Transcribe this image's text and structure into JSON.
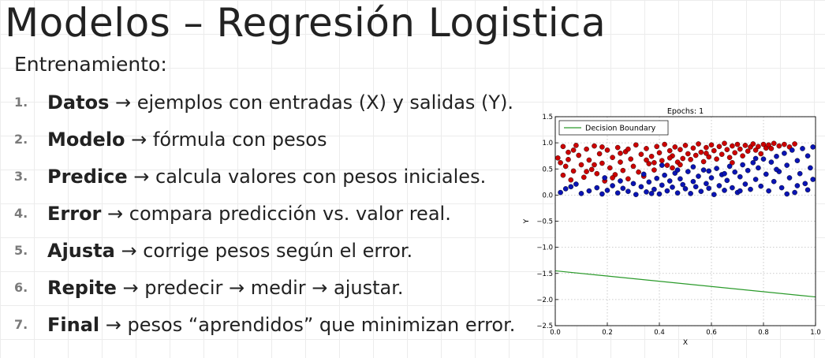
{
  "slide": {
    "title": "Modelos – Regresión Logistica",
    "subtitle": "Entrenamiento:",
    "steps": [
      {
        "num": "1.",
        "keyword": "Datos",
        "text": " → ejemplos con entradas (X) y salidas (Y)."
      },
      {
        "num": "2.",
        "keyword": "Modelo",
        "text": " → fórmula con pesos"
      },
      {
        "num": "3.",
        "keyword": "Predice",
        "text": " → calcula valores con pesos iniciales."
      },
      {
        "num": "4.",
        "keyword": "Error",
        "text": " → compara predicción vs. valor real."
      },
      {
        "num": "5.",
        "keyword": "Ajusta",
        "text": " → corrige pesos según el error."
      },
      {
        "num": "6.",
        "keyword": "Repite",
        "text": " → predecir → medir → ajustar."
      },
      {
        "num": "7.",
        "keyword": "Final",
        "text": " → pesos “aprendidos” que minimizan error."
      }
    ]
  },
  "chart_data": {
    "type": "scatter",
    "title": "Epochs: 1",
    "xlabel": "X",
    "ylabel": "Y",
    "xlim": [
      0.0,
      1.0
    ],
    "ylim": [
      -2.5,
      1.5
    ],
    "xticks": [
      "0.0",
      "0.2",
      "0.4",
      "0.6",
      "0.8",
      "1.0"
    ],
    "yticks": [
      "1.5",
      "1.0",
      "0.5",
      "0.0",
      "−0.5",
      "−1.0",
      "−1.5",
      "−2.0",
      "−2.5"
    ],
    "grid": true,
    "legend_position": "top-left",
    "legend": [
      "Decision Boundary"
    ],
    "colors": {
      "class_a": "#cc0000",
      "class_b": "#0a14b4",
      "boundary": "#2a9a2a"
    },
    "boundary_line": {
      "x": [
        0.0,
        1.0
      ],
      "y": [
        -1.45,
        -1.95
      ]
    },
    "series": [
      {
        "class": "red",
        "points": [
          [
            0.01,
            0.71
          ],
          [
            0.02,
            0.62
          ],
          [
            0.03,
            0.93
          ],
          [
            0.03,
            0.38
          ],
          [
            0.04,
            0.55
          ],
          [
            0.05,
            0.82
          ],
          [
            0.06,
            0.29
          ],
          [
            0.07,
            0.46
          ],
          [
            0.08,
            0.95
          ],
          [
            0.09,
            0.76
          ],
          [
            0.1,
            0.58
          ],
          [
            0.11,
            0.34
          ],
          [
            0.12,
            0.88
          ],
          [
            0.13,
            0.67
          ],
          [
            0.14,
            0.49
          ],
          [
            0.15,
            0.94
          ],
          [
            0.16,
            0.41
          ],
          [
            0.17,
            0.79
          ],
          [
            0.18,
            0.61
          ],
          [
            0.19,
            0.27
          ],
          [
            0.2,
            0.86
          ],
          [
            0.21,
            0.52
          ],
          [
            0.22,
            0.72
          ],
          [
            0.23,
            0.39
          ],
          [
            0.24,
            0.91
          ],
          [
            0.25,
            0.63
          ],
          [
            0.26,
            0.47
          ],
          [
            0.27,
            0.83
          ],
          [
            0.28,
            0.31
          ],
          [
            0.29,
            0.69
          ],
          [
            0.3,
            0.55
          ],
          [
            0.31,
            0.96
          ],
          [
            0.32,
            0.44
          ],
          [
            0.33,
            0.78
          ],
          [
            0.34,
            0.36
          ],
          [
            0.35,
            0.89
          ],
          [
            0.36,
            0.6
          ],
          [
            0.37,
            0.74
          ],
          [
            0.38,
            0.48
          ],
          [
            0.39,
            0.93
          ],
          [
            0.4,
            0.81
          ],
          [
            0.41,
            0.66
          ],
          [
            0.42,
            0.97
          ],
          [
            0.43,
            0.57
          ],
          [
            0.44,
            0.85
          ],
          [
            0.45,
            0.75
          ],
          [
            0.46,
            0.92
          ],
          [
            0.47,
            0.63
          ],
          [
            0.48,
            0.87
          ],
          [
            0.49,
            0.7
          ],
          [
            0.5,
            0.95
          ],
          [
            0.51,
            0.79
          ],
          [
            0.52,
            0.68
          ],
          [
            0.53,
            0.9
          ],
          [
            0.54,
            0.76
          ],
          [
            0.55,
            0.98
          ],
          [
            0.56,
            0.82
          ],
          [
            0.57,
            0.64
          ],
          [
            0.58,
            0.91
          ],
          [
            0.59,
            0.73
          ],
          [
            0.6,
            0.96
          ],
          [
            0.61,
            0.85
          ],
          [
            0.62,
            0.69
          ],
          [
            0.63,
            0.93
          ],
          [
            0.64,
            0.78
          ],
          [
            0.65,
            0.99
          ],
          [
            0.66,
            0.87
          ],
          [
            0.67,
            0.72
          ],
          [
            0.68,
            0.94
          ],
          [
            0.69,
            0.81
          ],
          [
            0.7,
            0.97
          ],
          [
            0.71,
            0.88
          ],
          [
            0.72,
            0.75
          ],
          [
            0.73,
            0.95
          ],
          [
            0.74,
            0.84
          ],
          [
            0.75,
            0.92
          ],
          [
            0.76,
            0.98
          ],
          [
            0.77,
            0.86
          ],
          [
            0.78,
            0.93
          ],
          [
            0.79,
            0.79
          ],
          [
            0.8,
            0.97
          ],
          [
            0.81,
            0.9
          ],
          [
            0.82,
            0.96
          ],
          [
            0.83,
            0.89
          ],
          [
            0.84,
            0.99
          ],
          [
            0.86,
            0.94
          ],
          [
            0.88,
            0.97
          ],
          [
            0.9,
            0.92
          ],
          [
            0.92,
            0.98
          ],
          [
            0.05,
            0.68
          ],
          [
            0.15,
            0.58
          ],
          [
            0.25,
            0.8
          ],
          [
            0.35,
            0.67
          ],
          [
            0.45,
            0.52
          ],
          [
            0.12,
            0.45
          ],
          [
            0.22,
            0.33
          ],
          [
            0.07,
            0.86
          ],
          [
            0.18,
            0.92
          ],
          [
            0.28,
            0.88
          ],
          [
            0.38,
            0.62
          ],
          [
            0.48,
            0.58
          ],
          [
            0.58,
            0.8
          ],
          [
            0.68,
            0.62
          ],
          [
            0.44,
            0.71
          ]
        ]
      },
      {
        "class": "blue",
        "points": [
          [
            0.02,
            0.05
          ],
          [
            0.04,
            0.12
          ],
          [
            0.08,
            0.21
          ],
          [
            0.1,
            0.03
          ],
          [
            0.16,
            0.14
          ],
          [
            0.18,
            0.02
          ],
          [
            0.2,
            0.09
          ],
          [
            0.22,
            0.18
          ],
          [
            0.24,
            0.04
          ],
          [
            0.26,
            0.13
          ],
          [
            0.28,
            0.07
          ],
          [
            0.3,
            0.22
          ],
          [
            0.31,
            0.01
          ],
          [
            0.33,
            0.16
          ],
          [
            0.35,
            0.06
          ],
          [
            0.36,
            0.25
          ],
          [
            0.38,
            0.11
          ],
          [
            0.39,
            0.32
          ],
          [
            0.4,
            0.02
          ],
          [
            0.41,
            0.19
          ],
          [
            0.42,
            0.38
          ],
          [
            0.43,
            0.08
          ],
          [
            0.44,
            0.27
          ],
          [
            0.45,
            0.15
          ],
          [
            0.46,
            0.42
          ],
          [
            0.47,
            0.04
          ],
          [
            0.48,
            0.31
          ],
          [
            0.49,
            0.2
          ],
          [
            0.5,
            0.12
          ],
          [
            0.51,
            0.45
          ],
          [
            0.52,
            0.03
          ],
          [
            0.53,
            0.26
          ],
          [
            0.54,
            0.16
          ],
          [
            0.55,
            0.36
          ],
          [
            0.56,
            0.07
          ],
          [
            0.57,
            0.48
          ],
          [
            0.58,
            0.22
          ],
          [
            0.59,
            0.13
          ],
          [
            0.6,
            0.33
          ],
          [
            0.61,
            0.01
          ],
          [
            0.62,
            0.51
          ],
          [
            0.63,
            0.18
          ],
          [
            0.64,
            0.39
          ],
          [
            0.65,
            0.09
          ],
          [
            0.66,
            0.28
          ],
          [
            0.67,
            0.55
          ],
          [
            0.68,
            0.14
          ],
          [
            0.69,
            0.44
          ],
          [
            0.7,
            0.05
          ],
          [
            0.71,
            0.35
          ],
          [
            0.72,
            0.58
          ],
          [
            0.73,
            0.21
          ],
          [
            0.74,
            0.47
          ],
          [
            0.75,
            0.11
          ],
          [
            0.76,
            0.62
          ],
          [
            0.77,
            0.3
          ],
          [
            0.78,
            0.52
          ],
          [
            0.79,
            0.17
          ],
          [
            0.8,
            0.69
          ],
          [
            0.81,
            0.4
          ],
          [
            0.82,
            0.08
          ],
          [
            0.83,
            0.63
          ],
          [
            0.84,
            0.26
          ],
          [
            0.85,
            0.74
          ],
          [
            0.86,
            0.45
          ],
          [
            0.87,
            0.14
          ],
          [
            0.88,
            0.8
          ],
          [
            0.89,
            0.57
          ],
          [
            0.9,
            0.33
          ],
          [
            0.91,
            0.86
          ],
          [
            0.92,
            0.05
          ],
          [
            0.93,
            0.66
          ],
          [
            0.94,
            0.41
          ],
          [
            0.95,
            0.89
          ],
          [
            0.96,
            0.22
          ],
          [
            0.97,
            0.75
          ],
          [
            0.98,
            0.52
          ],
          [
            0.99,
            0.92
          ],
          [
            0.99,
            0.3
          ],
          [
            0.97,
            0.1
          ],
          [
            0.93,
            0.18
          ],
          [
            0.89,
            0.02
          ],
          [
            0.85,
            0.49
          ],
          [
            0.77,
            0.7
          ],
          [
            0.71,
            0.08
          ],
          [
            0.65,
            0.41
          ],
          [
            0.59,
            0.46
          ],
          [
            0.53,
            0.54
          ],
          [
            0.47,
            0.48
          ],
          [
            0.41,
            0.57
          ],
          [
            0.34,
            0.4
          ],
          [
            0.25,
            0.27
          ],
          [
            0.19,
            0.33
          ],
          [
            0.13,
            0.08
          ],
          [
            0.06,
            0.16
          ],
          [
            0.37,
            0.03
          ]
        ]
      }
    ]
  }
}
